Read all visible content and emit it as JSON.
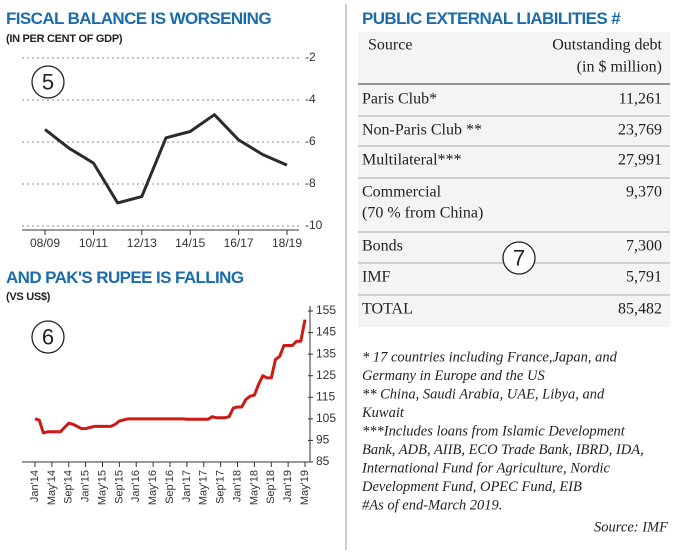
{
  "chart_data": [
    {
      "type": "line",
      "title": "FISCAL BALANCE IS WORSENING",
      "subtitle": "(IN PER CENT OF GDP)",
      "annotation": "5",
      "categories": [
        "08/09",
        null,
        "10/11",
        null,
        "12/13",
        null,
        "14/15",
        null,
        "16/17",
        null,
        "18/19"
      ],
      "values": [
        -5.4,
        -6.3,
        -7.0,
        -8.9,
        -8.6,
        -5.8,
        -5.5,
        -4.7,
        -5.9,
        -6.6,
        -7.1
      ],
      "color": "#2b2b2b",
      "ylim": [
        -10,
        -2
      ],
      "yticks": [
        -10,
        -8,
        -6,
        -4,
        -2
      ],
      "grid": true
    },
    {
      "type": "line",
      "title": "AND PAK'S RUPEE IS FALLING",
      "subtitle": "(VS US$)",
      "annotation": "6",
      "categories": [
        "Jan'14",
        null,
        null,
        null,
        "May'14",
        null,
        null,
        null,
        "Sep'14",
        null,
        null,
        null,
        "Jan'15",
        null,
        null,
        null,
        "May'15",
        null,
        null,
        null,
        "Sep'15",
        null,
        null,
        null,
        "Jan'16",
        null,
        null,
        null,
        "May'16",
        null,
        null,
        null,
        "Sep'16",
        null,
        null,
        null,
        "Jan'17",
        null,
        null,
        null,
        "May'17",
        null,
        null,
        null,
        "Sep'17",
        null,
        null,
        null,
        "Jan'18",
        null,
        null,
        null,
        "May'18",
        null,
        null,
        null,
        "Sep'18",
        null,
        null,
        null,
        "Jan'19",
        null,
        null,
        null,
        "May'19"
      ],
      "values": [
        105,
        104.5,
        98.5,
        99,
        99,
        99,
        99,
        101,
        103,
        102.5,
        101.5,
        100.5,
        100.5,
        101,
        101.5,
        101.5,
        101.5,
        101.5,
        101.5,
        102.5,
        104,
        104.5,
        105,
        105,
        105,
        105,
        105,
        105,
        105,
        105,
        105,
        105,
        105,
        105,
        105,
        105,
        104.8,
        104.8,
        104.8,
        104.8,
        104.8,
        104.8,
        106,
        105.5,
        105.5,
        105.5,
        106,
        110,
        110.5,
        110.5,
        114,
        115.5,
        116,
        121,
        125,
        124,
        124,
        132.5,
        134,
        139,
        139,
        139,
        141,
        141,
        151
      ],
      "color": "#cc1a14",
      "ylim": [
        85,
        155
      ],
      "yticks": [
        85,
        95,
        105,
        115,
        125,
        135,
        145,
        155
      ],
      "grid": false
    }
  ],
  "table": {
    "title": "PUBLIC EXTERNAL LIABILITIES #",
    "annotation": "7",
    "header": [
      "Source",
      "Outstanding debt",
      "(in $ million)"
    ],
    "rows": [
      {
        "source": "Paris Club*",
        "debt": "11,261"
      },
      {
        "source": "Non-Paris Club **",
        "debt": "23,769"
      },
      {
        "source": "Multilateral***",
        "debt": "27,991"
      },
      {
        "source": "Commercial",
        "note": "(70 % from China)",
        "debt": "9,370"
      },
      {
        "source": "Bonds",
        "debt": "7,300"
      },
      {
        "source": "IMF",
        "debt": "5,791"
      },
      {
        "source": "TOTAL",
        "debt": "85,482"
      }
    ]
  },
  "footnotes": [
    "* 17 countries including France,Japan, and",
    "Germany in Europe and the US",
    "** China, Saudi Arabia, UAE, Libya, and",
    "Kuwait",
    "***Includes loans from Islamic Development",
    "Bank, ADB, AIIB, ECO Trade Bank, IBRD, IDA,",
    "International Fund for Agriculture, Nordic",
    "Development Fund, OPEC Fund, EIB",
    "#As of end-March 2019."
  ],
  "source": "Source: IMF"
}
